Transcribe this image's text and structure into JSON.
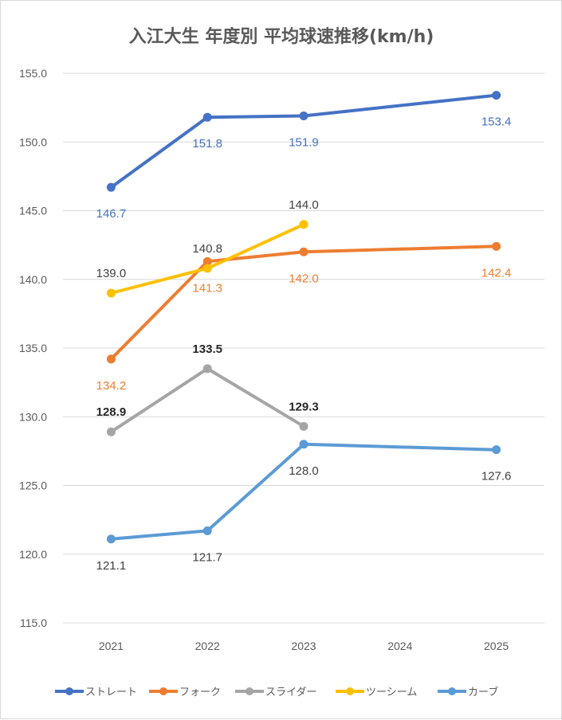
{
  "chart_data": {
    "type": "line",
    "title": "入江大生 年度別 平均球速推移(km/h)",
    "xlabel": "",
    "ylabel": "",
    "categories": [
      "2021",
      "2022",
      "2023",
      "2024",
      "2025"
    ],
    "ylim": [
      115,
      155
    ],
    "yticks": [
      "115.0",
      "120.0",
      "125.0",
      "130.0",
      "135.0",
      "140.0",
      "145.0",
      "150.0",
      "155.0"
    ],
    "grid": true,
    "legend_position": "bottom",
    "series": [
      {
        "name": "ストレート",
        "color": "#4472C4",
        "label_color": "#4472C4",
        "label_bold": false,
        "values": [
          146.7,
          151.8,
          151.9,
          null,
          153.4
        ],
        "labels": [
          "146.7",
          "151.8",
          "151.9",
          null,
          "153.4"
        ],
        "label_pos": [
          "below",
          "below",
          "below",
          null,
          "below"
        ]
      },
      {
        "name": "フォーク",
        "color": "#ED7D31",
        "label_color": "#ED7D31",
        "label_bold": false,
        "values": [
          134.2,
          141.3,
          142.0,
          null,
          142.4
        ],
        "labels": [
          "134.2",
          "141.3",
          "142.0",
          null,
          "142.4"
        ],
        "label_pos": [
          "below",
          "below",
          "below",
          null,
          "below"
        ]
      },
      {
        "name": "スライダー",
        "color": "#A5A5A5",
        "label_color": "#262626",
        "label_bold": true,
        "values": [
          128.9,
          133.5,
          129.3,
          null,
          null
        ],
        "labels": [
          "128.9",
          "133.5",
          "129.3",
          null,
          null
        ],
        "label_pos": [
          "above",
          "above",
          "above",
          null,
          null
        ]
      },
      {
        "name": "ツーシーム",
        "color": "#FFC000",
        "label_color": "#404040",
        "label_bold": false,
        "values": [
          139.0,
          140.8,
          144.0,
          null,
          null
        ],
        "labels": [
          "139.0",
          "140.8",
          "144.0",
          null,
          null
        ],
        "label_pos": [
          "above",
          "above",
          "above",
          null,
          null
        ]
      },
      {
        "name": "カーブ",
        "color": "#5B9BD5",
        "label_color": "#404040",
        "label_bold": false,
        "values": [
          121.1,
          121.7,
          128.0,
          null,
          127.6
        ],
        "labels": [
          "121.1",
          "121.7",
          "128.0",
          null,
          "127.6"
        ],
        "label_pos": [
          "below",
          "below",
          "below",
          null,
          "below"
        ]
      }
    ]
  }
}
